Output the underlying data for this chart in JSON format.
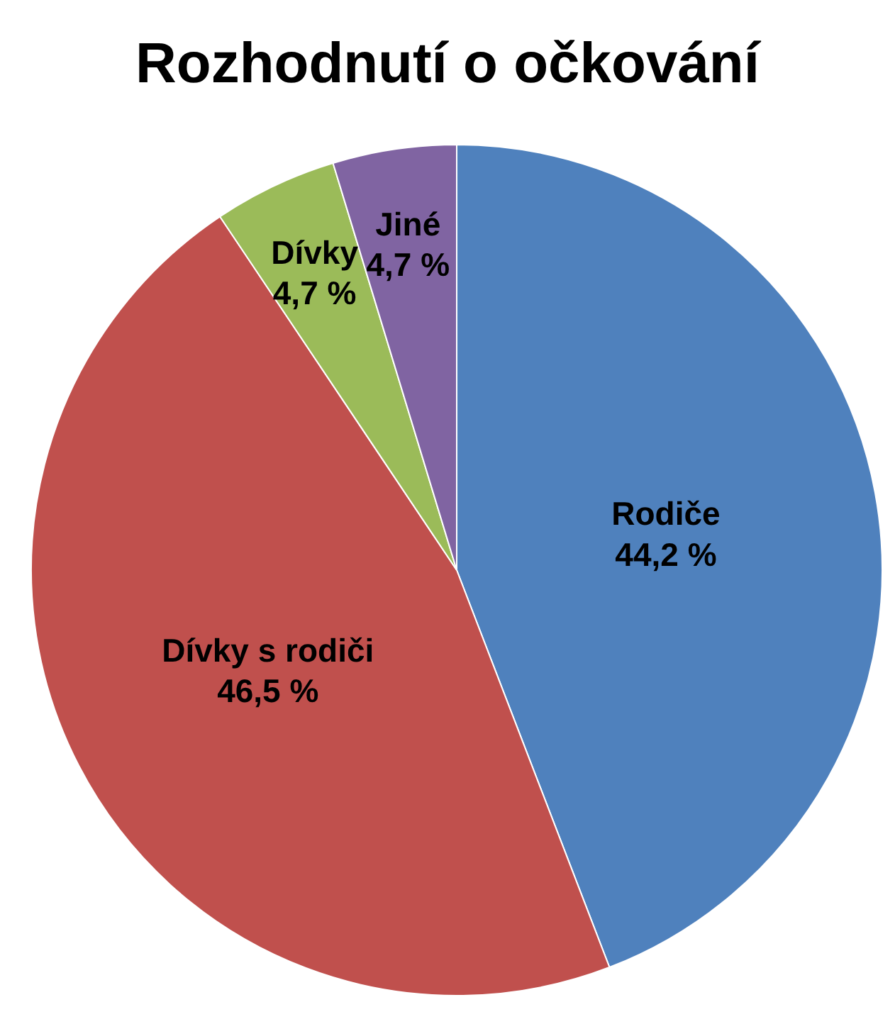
{
  "chart_data": {
    "type": "pie",
    "title": "Rozhodnutí o očkování",
    "categories": [
      "Rodiče",
      "Dívky s rodiči",
      "Dívky",
      "Jiné"
    ],
    "values": [
      44.2,
      46.5,
      4.7,
      4.7
    ],
    "value_labels": [
      "44,2 %",
      "46,5 %",
      "4,7 %",
      "4,7 %"
    ],
    "colors": [
      "#4f81bd",
      "#c0504d",
      "#9bbb59",
      "#8064a2"
    ]
  }
}
